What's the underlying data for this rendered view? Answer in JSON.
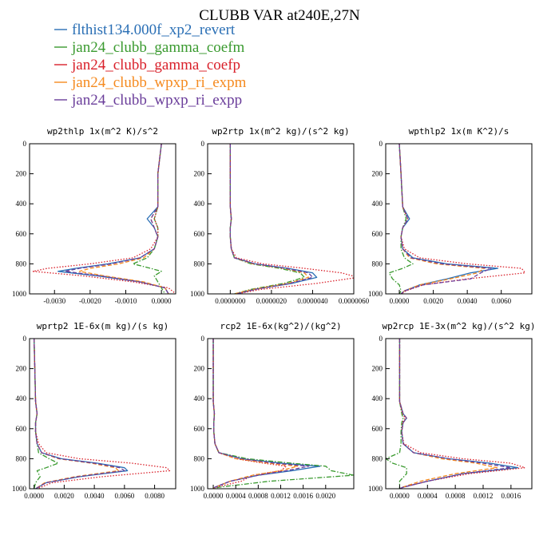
{
  "figure": {
    "title": "CLUBB VAR at240E,27N"
  },
  "legend": [
    {
      "name": "flthist134.000f_xp2_revert",
      "color": "#2a6fb5",
      "style": "solid"
    },
    {
      "name": "jan24_clubb_gamma_coefm",
      "color": "#3a9a2f",
      "style": "dashdot"
    },
    {
      "name": "jan24_clubb_gamma_coefp",
      "color": "#d9202a",
      "style": "dotted"
    },
    {
      "name": "jan24_clubb_wpxp_ri_expm",
      "color": "#f58a1f",
      "style": "dashed"
    },
    {
      "name": "jan24_clubb_wpxp_ri_expp",
      "color": "#6a3d9a",
      "style": "dashed"
    }
  ],
  "chart_data": [
    {
      "type": "line",
      "title": "wp2thlp  1x(m^2 K)/s^2",
      "xlim": [
        -0.0037,
        0.0004
      ],
      "ylim": [
        1000,
        0
      ],
      "grid": false,
      "xticks": [
        -0.003,
        -0.002,
        -0.001,
        0.0
      ],
      "xtick_labels": [
        "-0.0030",
        "-0.0020",
        "-0.0010",
        "0.0000"
      ],
      "yticks": [
        0,
        200,
        400,
        600,
        800,
        1000
      ],
      "y": [
        0,
        200,
        420,
        500,
        560,
        620,
        700,
        760,
        800,
        830,
        850,
        880,
        920,
        960,
        1000
      ],
      "series": [
        {
          "name": "flthist134.000f_xp2_revert",
          "values": [
            0,
            -0.0001,
            -0.0001,
            -0.0004,
            -0.0002,
            -0.0001,
            -0.0002,
            -0.0006,
            -0.0015,
            -0.0024,
            -0.0029,
            -0.0018,
            -0.0006,
            0.0001,
            0.0002
          ]
        },
        {
          "name": "jan24_clubb_gamma_coefm",
          "values": [
            0,
            -0.0001,
            -0.0001,
            -0.0002,
            -0.0001,
            -0.0001,
            -0.0002,
            -0.0004,
            -0.0008,
            -0.0003,
            0.0,
            -0.0002,
            -0.0001,
            0.0,
            0.0001
          ]
        },
        {
          "name": "jan24_clubb_gamma_coefp",
          "values": [
            0,
            -0.0001,
            -0.0001,
            -0.0002,
            -0.0001,
            -0.0001,
            -0.0003,
            -0.0008,
            -0.002,
            -0.0032,
            -0.0036,
            -0.0022,
            -0.0008,
            0.0002,
            0.0004
          ]
        },
        {
          "name": "jan24_clubb_wpxp_ri_expm",
          "values": [
            0,
            -0.0001,
            -0.0001,
            -0.0003,
            -0.0002,
            -0.0001,
            -0.0002,
            -0.0005,
            -0.0012,
            -0.002,
            -0.0023,
            -0.0016,
            -0.0005,
            0.0001,
            0.0002
          ]
        },
        {
          "name": "jan24_clubb_wpxp_ri_expp",
          "values": [
            0,
            -0.0001,
            -0.0001,
            -0.0003,
            -0.0002,
            -0.0001,
            -0.0002,
            -0.0006,
            -0.0014,
            -0.0023,
            -0.0027,
            -0.0017,
            -0.0006,
            0.0001,
            0.0002
          ]
        }
      ]
    },
    {
      "type": "line",
      "title": "wp2rtp  1x(m^2 kg)/(s^2 kg)",
      "xlim": [
        -1.1e-06,
        6e-06
      ],
      "ylim": [
        1000,
        0
      ],
      "grid": false,
      "xticks": [
        0.0,
        2e-06,
        4e-06,
        6e-06
      ],
      "xtick_labels": [
        "0.0000000",
        "0.0000020",
        "0.0000040",
        "0.0000060"
      ],
      "yticks": [
        0,
        200,
        400,
        600,
        800,
        1000
      ],
      "y": [
        0,
        200,
        420,
        500,
        560,
        620,
        700,
        760,
        800,
        830,
        860,
        890,
        930,
        970,
        1000
      ],
      "series": [
        {
          "name": "flthist134.000f_xp2_revert",
          "values": [
            0,
            0.0,
            0.0,
            5e-08,
            0.0,
            0.0,
            5e-08,
            2e-07,
            1.2e-06,
            2.8e-06,
            4e-06,
            4.2e-06,
            3e-06,
            1.2e-06,
            3e-07
          ]
        },
        {
          "name": "jan24_clubb_gamma_coefm",
          "values": [
            0,
            0.0,
            0.0,
            5e-08,
            0.0,
            0.0,
            5e-08,
            2e-07,
            1e-06,
            2.4e-06,
            3.4e-06,
            3.6e-06,
            2.6e-06,
            1e-06,
            2e-07
          ]
        },
        {
          "name": "jan24_clubb_gamma_coefp",
          "values": [
            0,
            0.0,
            0.0,
            5e-08,
            0.0,
            0.0,
            5e-08,
            3e-07,
            1.6e-06,
            3.6e-06,
            5.4e-06,
            6.2e-06,
            4.2e-06,
            1.5e-06,
            3e-07
          ]
        },
        {
          "name": "jan24_clubb_wpxp_ri_expm",
          "values": [
            0,
            0.0,
            0.0,
            5e-08,
            0.0,
            0.0,
            5e-08,
            2e-07,
            1.1e-06,
            2.6e-06,
            3.6e-06,
            3.8e-06,
            2.8e-06,
            1.1e-06,
            2e-07
          ]
        },
        {
          "name": "jan24_clubb_wpxp_ri_expp",
          "values": [
            0,
            0.0,
            0.0,
            5e-08,
            0.0,
            0.0,
            5e-08,
            2e-07,
            1.2e-06,
            2.7e-06,
            3.8e-06,
            4e-06,
            2.9e-06,
            1.2e-06,
            3e-07
          ]
        }
      ]
    },
    {
      "type": "line",
      "title": "wpthlp2  1x(m K^2)/s",
      "xlim": [
        -0.0008,
        0.0078
      ],
      "ylim": [
        1000,
        0
      ],
      "grid": false,
      "xticks": [
        0.0,
        0.002,
        0.004,
        0.006
      ],
      "xtick_labels": [
        "0.0000",
        "0.0020",
        "0.0040",
        "0.0060"
      ],
      "yticks": [
        0,
        200,
        400,
        600,
        800,
        1000
      ],
      "y": [
        0,
        200,
        420,
        500,
        560,
        620,
        700,
        760,
        800,
        830,
        860,
        900,
        940,
        980,
        1000
      ],
      "series": [
        {
          "name": "flthist134.000f_xp2_revert",
          "values": [
            0,
            0.0001,
            0.0002,
            0.0006,
            0.0002,
            0.0001,
            0.0002,
            0.0008,
            0.0028,
            0.0058,
            0.0042,
            0.0028,
            0.0012,
            0.0003,
            0.0001
          ]
        },
        {
          "name": "jan24_clubb_gamma_coefm",
          "values": [
            0,
            0.0001,
            0.0002,
            0.0004,
            0.0002,
            0.0001,
            0.0001,
            0.0003,
            0.0008,
            0.0002,
            -0.0006,
            -0.0004,
            0.0,
            0.0001,
            0.0
          ]
        },
        {
          "name": "jan24_clubb_gamma_coefp",
          "values": [
            0,
            0.0001,
            0.0002,
            0.0005,
            0.0002,
            0.0001,
            0.0003,
            0.0012,
            0.004,
            0.0072,
            0.0074,
            0.004,
            0.0014,
            0.0004,
            0.0001
          ]
        },
        {
          "name": "jan24_clubb_wpxp_ri_expm",
          "values": [
            0,
            0.0001,
            0.0002,
            0.0005,
            0.0002,
            0.0001,
            0.0002,
            0.0006,
            0.0022,
            0.005,
            0.0046,
            0.003,
            0.0012,
            0.0003,
            0.0001
          ]
        },
        {
          "name": "jan24_clubb_wpxp_ri_expp",
          "values": [
            0,
            0.0001,
            0.0002,
            0.0005,
            0.0002,
            0.0001,
            0.0002,
            0.0007,
            0.0025,
            0.0054,
            0.0048,
            0.0042,
            0.0014,
            0.0003,
            0.0001
          ]
        }
      ]
    },
    {
      "type": "line",
      "title": "wprtp2  1E-6x(m kg)/(s kg)",
      "xlim": [
        -0.0003,
        0.0094
      ],
      "ylim": [
        1000,
        0
      ],
      "grid": false,
      "xticks": [
        0.0,
        0.002,
        0.004,
        0.006,
        0.008
      ],
      "xtick_labels": [
        "0.0000",
        "0.0020",
        "0.0040",
        "0.0060",
        "0.0080"
      ],
      "yticks": [
        0,
        200,
        400,
        600,
        800,
        1000
      ],
      "y": [
        0,
        200,
        420,
        500,
        560,
        620,
        700,
        760,
        800,
        830,
        860,
        880,
        920,
        960,
        1000
      ],
      "series": [
        {
          "name": "flthist134.000f_xp2_revert",
          "values": [
            0,
            5e-05,
            0.0001,
            0.0002,
            0.0001,
            0.0001,
            0.0002,
            0.0005,
            0.0018,
            0.0042,
            0.006,
            0.0062,
            0.003,
            0.0008,
            0.0001
          ]
        },
        {
          "name": "jan24_clubb_gamma_coefm",
          "values": [
            0,
            5e-05,
            0.0001,
            0.0002,
            0.0001,
            0.0001,
            0.0002,
            0.0003,
            0.001,
            0.0016,
            0.0008,
            0.0002,
            0.0004,
            0.0001,
            0.0
          ]
        },
        {
          "name": "jan24_clubb_gamma_coefp",
          "values": [
            0,
            5e-05,
            0.0001,
            0.0002,
            0.0001,
            0.0001,
            0.0003,
            0.0008,
            0.003,
            0.0065,
            0.0088,
            0.009,
            0.0045,
            0.0012,
            0.0002
          ]
        },
        {
          "name": "jan24_clubb_wpxp_ri_expm",
          "values": [
            0,
            5e-05,
            0.0001,
            0.0002,
            0.0001,
            0.0001,
            0.0002,
            0.0005,
            0.0016,
            0.0038,
            0.0054,
            0.0056,
            0.0027,
            0.0007,
            0.0001
          ]
        },
        {
          "name": "jan24_clubb_wpxp_ri_expp",
          "values": [
            0,
            5e-05,
            0.0001,
            0.0002,
            0.0001,
            0.0001,
            0.0002,
            0.0005,
            0.0017,
            0.004,
            0.0057,
            0.006,
            0.0029,
            0.0008,
            0.0001
          ]
        }
      ]
    },
    {
      "type": "line",
      "title": "rcp2  1E-6x(kg^2)/(kg^2)",
      "xlim": [
        -0.0001,
        0.0025
      ],
      "ylim": [
        1000,
        0
      ],
      "grid": false,
      "xticks": [
        0.0,
        0.0004,
        0.0008,
        0.0012,
        0.0016,
        0.002
      ],
      "xtick_labels": [
        "0.0000",
        "0.0004",
        "0.0008",
        "0.0012",
        "0.0016",
        "0.0020"
      ],
      "yticks": [
        0,
        200,
        400,
        600,
        800,
        1000
      ],
      "y": [
        0,
        200,
        420,
        500,
        560,
        620,
        700,
        760,
        800,
        830,
        850,
        880,
        910,
        950,
        990,
        1000
      ],
      "series": [
        {
          "name": "flthist134.000f_xp2_revert",
          "values": [
            0,
            0.0,
            0.0,
            2e-05,
            1e-05,
            1e-05,
            3e-05,
            0.0001,
            0.0005,
            0.0012,
            0.0019,
            0.0014,
            0.0008,
            0.0003,
            3e-05,
            0.0
          ]
        },
        {
          "name": "jan24_clubb_gamma_coefm",
          "values": [
            0,
            0.0,
            0.0,
            2e-05,
            1e-05,
            1e-05,
            3e-05,
            0.0001,
            0.0006,
            0.0014,
            0.002,
            0.0021,
            0.0025,
            0.001,
            0.0001,
            0.0
          ]
        },
        {
          "name": "jan24_clubb_gamma_coefp",
          "values": [
            0,
            0.0,
            0.0,
            2e-05,
            1e-05,
            1e-05,
            3e-05,
            0.0001,
            0.0004,
            0.0009,
            0.0013,
            0.0012,
            0.0007,
            0.0005,
            5e-05,
            0.0
          ]
        },
        {
          "name": "jan24_clubb_wpxp_ri_expm",
          "values": [
            0,
            0.0,
            0.0,
            2e-05,
            1e-05,
            1e-05,
            3e-05,
            0.0001,
            0.0004,
            0.001,
            0.0015,
            0.0012,
            0.0007,
            0.0003,
            3e-05,
            0.0
          ]
        },
        {
          "name": "jan24_clubb_wpxp_ri_expp",
          "values": [
            0,
            0.0,
            0.0,
            2e-05,
            1e-05,
            1e-05,
            3e-05,
            0.0001,
            0.0005,
            0.0011,
            0.0017,
            0.0013,
            0.0008,
            0.0003,
            3e-05,
            0.0
          ]
        }
      ]
    },
    {
      "type": "line",
      "title": "wp2rcp  1E-3x(m^2 kg)/(s^2 kg)",
      "xlim": [
        -0.0002,
        0.0019
      ],
      "ylim": [
        1000,
        0
      ],
      "grid": false,
      "xticks": [
        0.0,
        0.0004,
        0.0008,
        0.0012,
        0.0016
      ],
      "xtick_labels": [
        "0.0000",
        "0.0004",
        "0.0008",
        "0.0012",
        "0.0016"
      ],
      "yticks": [
        0,
        200,
        400,
        600,
        800,
        1000
      ],
      "y": [
        0,
        200,
        420,
        500,
        530,
        560,
        620,
        700,
        760,
        800,
        830,
        860,
        900,
        950,
        990,
        1000
      ],
      "series": [
        {
          "name": "flthist134.000f_xp2_revert",
          "values": [
            0,
            0.0,
            0.0,
            5e-05,
            0.0001,
            5e-05,
            3e-05,
            5e-05,
            0.0002,
            0.0007,
            0.0013,
            0.0017,
            0.0009,
            0.0004,
            5e-05,
            0.0
          ]
        },
        {
          "name": "jan24_clubb_gamma_coefm",
          "values": [
            0,
            0.0,
            0.0,
            3e-05,
            5e-05,
            3e-05,
            2e-05,
            2e-05,
            0.0,
            -0.0002,
            -0.0001,
            0.0001,
            0.0001,
            0.0,
            0.0,
            0.0
          ]
        },
        {
          "name": "jan24_clubb_gamma_coefp",
          "values": [
            0,
            0.0,
            0.0,
            4e-05,
            8e-05,
            4e-05,
            3e-05,
            6e-05,
            0.0003,
            0.0009,
            0.0016,
            0.0018,
            0.001,
            0.0004,
            5e-05,
            0.0
          ]
        },
        {
          "name": "jan24_clubb_wpxp_ri_expm",
          "values": [
            0,
            0.0,
            0.0,
            5e-05,
            0.0001,
            5e-05,
            3e-05,
            5e-05,
            0.0002,
            0.0006,
            0.0011,
            0.0014,
            0.0008,
            0.0003,
            4e-05,
            0.0
          ]
        },
        {
          "name": "jan24_clubb_wpxp_ri_expp",
          "values": [
            0,
            0.0,
            0.0,
            5e-05,
            0.0001,
            5e-05,
            3e-05,
            5e-05,
            0.0002,
            0.0007,
            0.0012,
            0.0016,
            0.0009,
            0.0004,
            5e-05,
            0.0
          ]
        }
      ]
    }
  ]
}
